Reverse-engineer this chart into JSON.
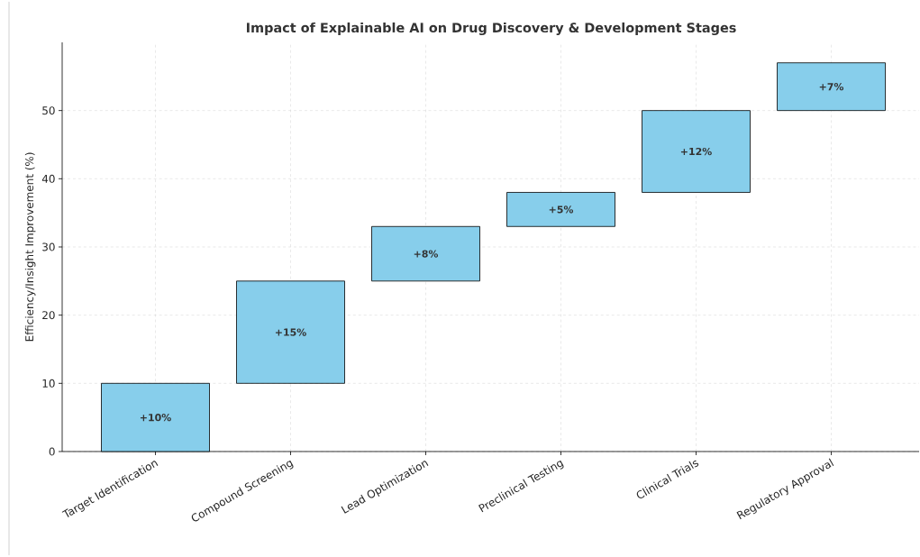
{
  "chart_data": {
    "type": "bar",
    "title": "Impact of Explainable AI on Drug Discovery & Development Stages",
    "ylabel": "Efficiency/Insight Improvement (%)",
    "categories": [
      "Target Identification",
      "Compound Screening",
      "Lead Optimization",
      "Preclinical Testing",
      "Clinical Trials",
      "Regulatory Approval"
    ],
    "values": [
      10,
      15,
      8,
      5,
      12,
      7
    ],
    "base": [
      0,
      10,
      25,
      33,
      38,
      50
    ],
    "value_labels": [
      "+10%",
      "+15%",
      "+8%",
      "+5%",
      "+12%",
      "+7%"
    ],
    "color": "#87ceeb",
    "ylim": [
      0,
      60
    ],
    "yticks": [
      0,
      10,
      20,
      30,
      40,
      50
    ],
    "grid": true
  }
}
